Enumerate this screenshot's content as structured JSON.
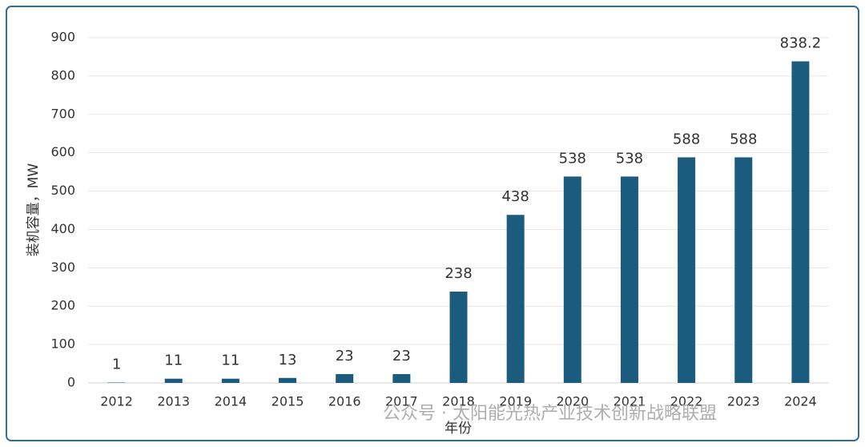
{
  "chart_data": {
    "type": "bar",
    "x_label": "年份",
    "y_label": "装机容量，MW",
    "categories": [
      "2012",
      "2013",
      "2014",
      "2015",
      "2016",
      "2017",
      "2018",
      "2019",
      "2020",
      "2021",
      "2022",
      "2023",
      "2024"
    ],
    "values": [
      1,
      11,
      11,
      13,
      23,
      23,
      238,
      438,
      538,
      538,
      588,
      588,
      838.2
    ],
    "color": "#1a5b7e",
    "ylim": [
      0,
      900
    ],
    "yticks": [
      0,
      100,
      200,
      300,
      400,
      500,
      600,
      700,
      800,
      900
    ],
    "grid": true,
    "watermark": "公众号 · 太阳能光热产业技术创新战略联盟"
  }
}
